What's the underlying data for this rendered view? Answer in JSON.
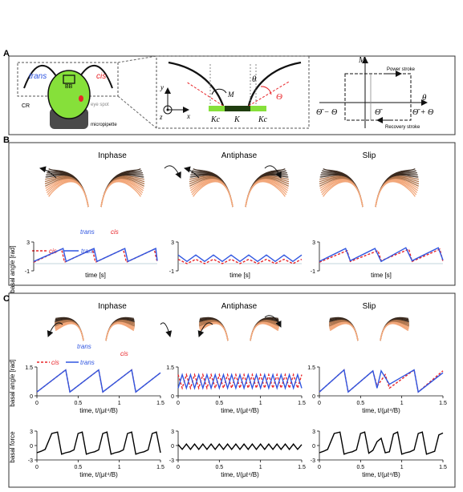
{
  "panel_a": {
    "label": "A",
    "trans": "trans",
    "cis": "cis",
    "bb": "BB",
    "cr": "CR",
    "eye_spot": "eye spot",
    "micropipette": "micropipette",
    "axis_y": "y",
    "axis_x": "x",
    "axis_z": "z",
    "sym_M": "M",
    "sym_theta": "θ",
    "sym_Theta": "Θ",
    "sym_Kc_left": "Kc",
    "sym_K": "K",
    "sym_Kc_right": "Kc",
    "graph_M": "M",
    "graph_theta": "θ",
    "power_stroke": "Power stroke",
    "recovery_stroke": "Recovery stroke",
    "tick_left": "Θ̄ − Θ",
    "tick_mid": "Θ̄",
    "tick_right": "Θ̄ + Θ"
  },
  "panel_b": {
    "label": "B",
    "titles": [
      "Inphase",
      "Antiphase",
      "Slip"
    ],
    "trans": "trans",
    "cis": "cis",
    "legend_cis": "cis",
    "legend_trans": "trans",
    "ylabel": "basal angle [rad]",
    "xlabel": "time [s]",
    "ytick_top": "3",
    "ytick_bottom": "-1"
  },
  "panel_c": {
    "label": "C",
    "titles": [
      "Inphase",
      "Antiphase",
      "Slip"
    ],
    "trans": "trans",
    "cis": "cis",
    "legend_cis": "cis",
    "legend_trans": "trans",
    "ylabel_angle": "basal angle [rad]",
    "ylabel_force": "basal force",
    "xlabel": "time, t/(μℓ⁴/B)",
    "angle_yticks": [
      "1.5",
      "0"
    ],
    "force_yticks": [
      "3",
      "0",
      "-3"
    ],
    "xticks": [
      "0",
      "0.5",
      "1",
      "1.5"
    ]
  },
  "colors": {
    "cis": "#e8262a",
    "trans": "#2f55e0",
    "force": "#000000",
    "flagella_dark": "#3b2a1f",
    "flagella_light": "#f2a77a",
    "cell_green": "#86e03a"
  },
  "chart_data": [
    {
      "id": "B-inphase",
      "type": "line",
      "title": "Inphase",
      "xlabel": "time [s]",
      "ylabel": "basal angle [rad]",
      "ylim": [
        -1,
        3
      ],
      "series": [
        {
          "name": "cis",
          "style": "dashed",
          "x": [
            0,
            0.9,
            1,
            1.9,
            2,
            2.9,
            3,
            3.9,
            4
          ],
          "y": [
            0.2,
            2.0,
            0.2,
            2.0,
            0.2,
            2.0,
            0.2,
            2.0,
            0.2
          ]
        },
        {
          "name": "trans",
          "style": "solid",
          "x": [
            0,
            0.95,
            1.05,
            1.95,
            2.05,
            2.95,
            3.05,
            3.95,
            4
          ],
          "y": [
            0.3,
            2.1,
            0.3,
            2.1,
            0.3,
            2.1,
            0.3,
            2.1,
            0.4
          ]
        }
      ]
    },
    {
      "id": "B-antiphase",
      "type": "line",
      "title": "Antiphase",
      "xlabel": "time [s]",
      "ylim": [
        -1,
        3
      ],
      "series": [
        {
          "name": "cis",
          "style": "dashed",
          "x": [
            0,
            0.5,
            1,
            1.5,
            2,
            2.5,
            3,
            3.5,
            4,
            4.5,
            5,
            5.5,
            6,
            6.5,
            7
          ],
          "y": [
            0.6,
            0.0,
            0.6,
            0.0,
            0.6,
            0.0,
            0.6,
            0.0,
            0.6,
            0.0,
            0.6,
            0.0,
            0.6,
            0.0,
            0.6
          ]
        },
        {
          "name": "trans",
          "style": "solid",
          "x": [
            0,
            0.5,
            1,
            1.5,
            2,
            2.5,
            3,
            3.5,
            4,
            4.5,
            5,
            5.5,
            6,
            6.5,
            7
          ],
          "y": [
            1.2,
            0.3,
            1.2,
            0.3,
            1.2,
            0.3,
            1.2,
            0.3,
            1.2,
            0.3,
            1.2,
            0.3,
            1.2,
            0.3,
            1.2
          ]
        }
      ]
    },
    {
      "id": "B-slip",
      "type": "line",
      "title": "Slip",
      "xlabel": "time [s]",
      "ylim": [
        -1,
        3
      ],
      "series": [
        {
          "name": "cis",
          "style": "dashed",
          "x": [
            0,
            0.9,
            1,
            1.9,
            2,
            2.9,
            3,
            3.9,
            4
          ],
          "y": [
            0.2,
            1.8,
            0.3,
            1.8,
            0.4,
            2.0,
            0.3,
            2.0,
            0.3
          ]
        },
        {
          "name": "trans",
          "style": "solid",
          "x": [
            0,
            0.85,
            1,
            1.8,
            2,
            2.8,
            3,
            3.85,
            4
          ],
          "y": [
            0.3,
            2.1,
            0.4,
            2.1,
            0.3,
            2.2,
            0.4,
            2.2,
            0.5
          ]
        }
      ]
    },
    {
      "id": "C-inphase-angle",
      "type": "line",
      "title": "Inphase",
      "xlabel": "time, t/(μℓ⁴/B)",
      "ylabel": "basal angle [rad]",
      "xlim": [
        0,
        1.5
      ],
      "ylim": [
        0,
        1.5
      ],
      "series": [
        {
          "name": "cis",
          "style": "dashed",
          "x": [
            0,
            0.35,
            0.4,
            0.75,
            0.8,
            1.15,
            1.2,
            1.5
          ],
          "y": [
            0.2,
            1.35,
            0.2,
            1.35,
            0.2,
            1.35,
            0.2,
            1.2
          ]
        },
        {
          "name": "trans",
          "style": "solid",
          "x": [
            0,
            0.35,
            0.4,
            0.75,
            0.8,
            1.15,
            1.2,
            1.5
          ],
          "y": [
            0.2,
            1.35,
            0.2,
            1.35,
            0.2,
            1.35,
            0.2,
            1.2
          ]
        }
      ]
    },
    {
      "id": "C-antiphase-angle",
      "type": "line",
      "title": "Antiphase",
      "xlabel": "time, t/(μℓ⁴/B)",
      "xlim": [
        0,
        1.5
      ],
      "ylim": [
        0,
        1.5
      ],
      "series": [
        {
          "name": "cis",
          "style": "dashed",
          "x": [
            0,
            0.05,
            0.1,
            0.15,
            0.2,
            0.25,
            0.3,
            0.35,
            0.4,
            0.45,
            0.5,
            0.55,
            0.6,
            0.65,
            0.7,
            0.75,
            0.8,
            0.85,
            0.9,
            0.95,
            1.0,
            1.05,
            1.1,
            1.15,
            1.2,
            1.25,
            1.3,
            1.35,
            1.4,
            1.45,
            1.5
          ],
          "y": [
            1.1,
            0.4,
            1.1,
            0.4,
            1.1,
            0.4,
            1.1,
            0.4,
            1.1,
            0.4,
            1.1,
            0.4,
            1.1,
            0.4,
            1.1,
            0.4,
            1.1,
            0.4,
            1.1,
            0.4,
            1.1,
            0.4,
            1.1,
            0.4,
            1.1,
            0.4,
            1.1,
            0.4,
            1.1,
            0.4,
            1.1
          ]
        },
        {
          "name": "trans",
          "style": "solid",
          "x": [
            0,
            0.05,
            0.1,
            0.15,
            0.2,
            0.25,
            0.3,
            0.35,
            0.4,
            0.45,
            0.5,
            0.55,
            0.6,
            0.65,
            0.7,
            0.75,
            0.8,
            0.85,
            0.9,
            0.95,
            1.0,
            1.05,
            1.1,
            1.15,
            1.2,
            1.25,
            1.3,
            1.35,
            1.4,
            1.45,
            1.5
          ],
          "y": [
            0.4,
            1.1,
            0.4,
            1.1,
            0.4,
            1.1,
            0.4,
            1.1,
            0.4,
            1.1,
            0.4,
            1.1,
            0.4,
            1.1,
            0.4,
            1.1,
            0.4,
            1.1,
            0.4,
            1.1,
            0.4,
            1.1,
            0.4,
            1.1,
            0.4,
            1.1,
            0.4,
            1.1,
            0.4,
            1.1,
            0.4
          ]
        }
      ]
    },
    {
      "id": "C-slip-angle",
      "type": "line",
      "title": "Slip",
      "xlabel": "time, t/(μℓ⁴/B)",
      "xlim": [
        0,
        1.5
      ],
      "ylim": [
        0,
        1.5
      ],
      "series": [
        {
          "name": "cis",
          "style": "dashed",
          "x": [
            0,
            0.3,
            0.35,
            0.65,
            0.7,
            0.8,
            0.85,
            1.15,
            1.2,
            1.5
          ],
          "y": [
            0.2,
            1.35,
            0.2,
            1.3,
            0.5,
            1.1,
            0.4,
            1.35,
            0.2,
            1.3
          ]
        },
        {
          "name": "trans",
          "style": "solid",
          "x": [
            0,
            0.3,
            0.35,
            0.65,
            0.7,
            0.75,
            0.85,
            1.15,
            1.2,
            1.5
          ],
          "y": [
            0.2,
            1.35,
            0.2,
            1.3,
            0.4,
            1.3,
            0.6,
            1.35,
            0.2,
            1.2
          ]
        }
      ]
    },
    {
      "id": "C-inphase-force",
      "type": "line",
      "xlabel": "time, t/(μℓ⁴/B)",
      "ylabel": "basal force",
      "xlim": [
        0,
        1.5
      ],
      "ylim": [
        -3,
        3
      ],
      "series": [
        {
          "x": [
            0,
            0.05,
            0.1,
            0.18,
            0.25,
            0.3,
            0.35,
            0.4,
            0.45,
            0.5,
            0.55,
            0.6,
            0.65,
            0.7,
            0.75,
            0.8,
            0.85,
            0.9,
            0.95,
            1.0,
            1.05,
            1.1,
            1.15,
            1.2,
            1.25,
            1.3,
            1.35,
            1.4,
            1.45,
            1.5
          ],
          "y": [
            -1.5,
            -1.2,
            -0.8,
            2.5,
            2.8,
            -1.8,
            -1.5,
            -1.3,
            -0.9,
            2.5,
            2.8,
            -1.8,
            -1.5,
            -1.3,
            -0.9,
            2.5,
            2.8,
            -1.8,
            -1.5,
            -1.3,
            -0.9,
            2.5,
            2.8,
            -1.8,
            -1.5,
            -1.3,
            -0.9,
            2.5,
            2.8,
            -1.5
          ]
        }
      ]
    },
    {
      "id": "C-antiphase-force",
      "type": "line",
      "xlabel": "time, t/(μℓ⁴/B)",
      "xlim": [
        0,
        1.5
      ],
      "ylim": [
        -3,
        3
      ],
      "series": [
        {
          "x": [
            0,
            0.05,
            0.1,
            0.15,
            0.2,
            0.25,
            0.3,
            0.35,
            0.4,
            0.45,
            0.5,
            0.55,
            0.6,
            0.65,
            0.7,
            0.75,
            0.8,
            0.85,
            0.9,
            0.95,
            1.0,
            1.05,
            1.1,
            1.15,
            1.2,
            1.25,
            1.3,
            1.35,
            1.4,
            1.45,
            1.5
          ],
          "y": [
            0.2,
            -0.8,
            0.3,
            -0.8,
            0.3,
            -0.8,
            0.3,
            -0.8,
            0.3,
            -0.8,
            0.3,
            -0.8,
            0.3,
            -0.8,
            0.3,
            -0.8,
            0.3,
            -0.8,
            0.3,
            -0.8,
            0.3,
            -0.8,
            0.3,
            -0.8,
            0.3,
            -0.8,
            0.3,
            -0.8,
            0.3,
            -0.8,
            0.2
          ]
        }
      ]
    },
    {
      "id": "C-slip-force",
      "type": "line",
      "xlabel": "time, t/(μℓ⁴/B)",
      "xlim": [
        0,
        1.5
      ],
      "ylim": [
        -3,
        3
      ],
      "series": [
        {
          "x": [
            0,
            0.05,
            0.1,
            0.18,
            0.25,
            0.3,
            0.35,
            0.4,
            0.45,
            0.5,
            0.55,
            0.6,
            0.65,
            0.7,
            0.75,
            0.8,
            0.85,
            0.9,
            0.95,
            1.0,
            1.05,
            1.1,
            1.15,
            1.2,
            1.25,
            1.3,
            1.35,
            1.4,
            1.45,
            1.5
          ],
          "y": [
            -1.5,
            -1.2,
            -0.8,
            2.5,
            2.8,
            -1.8,
            -1.5,
            -1.3,
            -0.9,
            2.5,
            2.8,
            -1.6,
            -1.0,
            0.8,
            1.5,
            -1.5,
            -1.3,
            2.4,
            2.8,
            -1.8,
            -1.5,
            -1.3,
            -0.9,
            2.5,
            2.8,
            -1.8,
            -1.5,
            -1.2,
            2.2,
            2.6
          ]
        }
      ]
    }
  ]
}
